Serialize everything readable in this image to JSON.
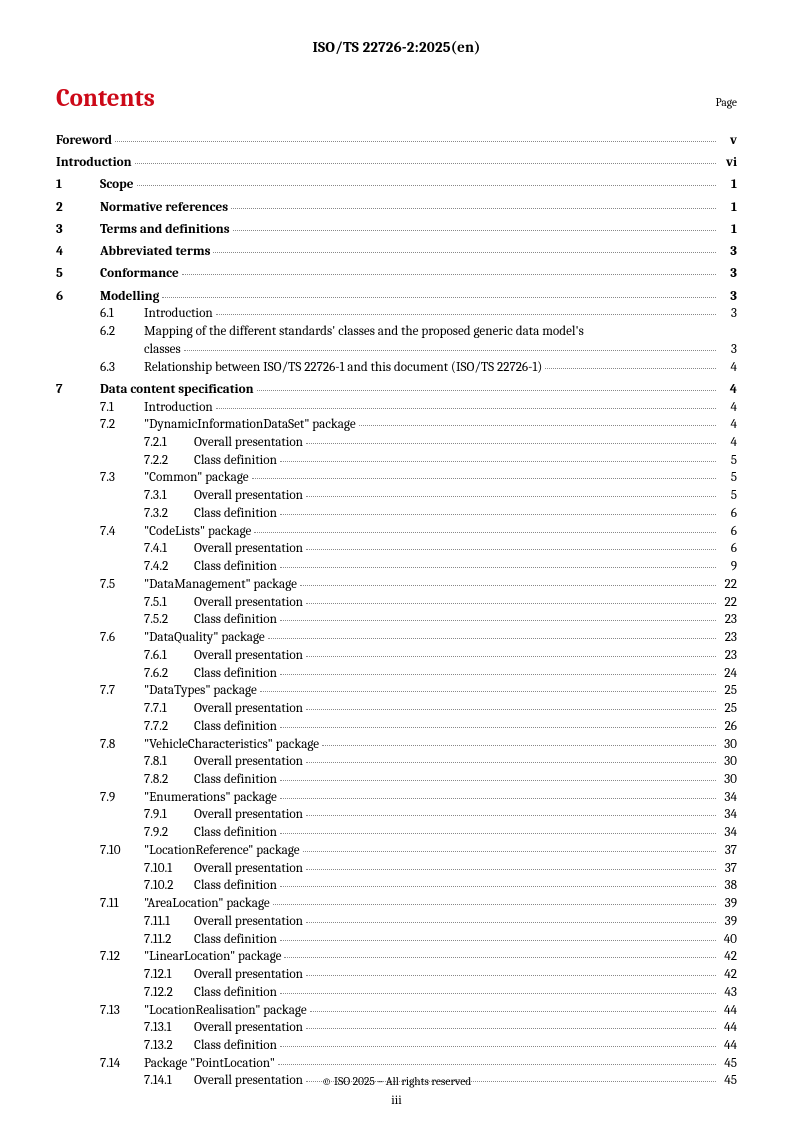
{
  "header": "ISO/TS 22726-2:2025(en)",
  "contents_title": "Contents",
  "page_label": "Page",
  "footer": "© ISO 2025 – All rights reserved",
  "page_number": "iii",
  "colors": {
    "accent": "#cc0918",
    "text": "#000000",
    "leader": "#888888",
    "background": "#ffffff"
  },
  "toc": [
    {
      "level": 0,
      "num": "",
      "label": "Foreword",
      "page": "v"
    },
    {
      "level": 0,
      "num": "",
      "label": "Introduction",
      "page": "vi"
    },
    {
      "level": 1,
      "num": "1",
      "label": "Scope",
      "page": "1"
    },
    {
      "level": 1,
      "num": "2",
      "label": "Normative references",
      "page": "1"
    },
    {
      "level": 1,
      "num": "3",
      "label": "Terms and definitions",
      "page": "1"
    },
    {
      "level": 1,
      "num": "4",
      "label": "Abbreviated terms",
      "page": "3"
    },
    {
      "level": 1,
      "num": "5",
      "label": "Conformance",
      "page": "3"
    },
    {
      "level": 1,
      "num": "6",
      "label": "Modelling",
      "page": "3"
    },
    {
      "level": 2,
      "num": "6.1",
      "label": "Introduction",
      "page": "3"
    },
    {
      "level": 2,
      "num": "6.2",
      "label_line1": "Mapping of the different standards' classes and the proposed generic data model's",
      "label_line2": "classes",
      "page": "3",
      "multiline": true
    },
    {
      "level": 2,
      "num": "6.3",
      "label": "Relationship between ISO/TS 22726-1 and this document (ISO/TS 22726-1)",
      "page": "4"
    },
    {
      "level": 1,
      "num": "7",
      "label": "Data content specification",
      "page": "4"
    },
    {
      "level": 2,
      "num": "7.1",
      "label": "Introduction",
      "page": "4"
    },
    {
      "level": 2,
      "num": "7.2",
      "label": "\"DynamicInformationDataSet\" package",
      "page": "4"
    },
    {
      "level": 3,
      "num": "7.2.1",
      "label": "Overall presentation",
      "page": "4"
    },
    {
      "level": 3,
      "num": "7.2.2",
      "label": "Class definition",
      "page": "5"
    },
    {
      "level": 2,
      "num": "7.3",
      "label": "\"Common\" package",
      "page": "5"
    },
    {
      "level": 3,
      "num": "7.3.1",
      "label": "Overall presentation",
      "page": "5"
    },
    {
      "level": 3,
      "num": "7.3.2",
      "label": "Class definition",
      "page": "6"
    },
    {
      "level": 2,
      "num": "7.4",
      "label": "\"CodeLists\" package",
      "page": "6"
    },
    {
      "level": 3,
      "num": "7.4.1",
      "label": "Overall presentation",
      "page": "6"
    },
    {
      "level": 3,
      "num": "7.4.2",
      "label": "Class definition",
      "page": "9"
    },
    {
      "level": 2,
      "num": "7.5",
      "label": "\"DataManagement\" package",
      "page": "22"
    },
    {
      "level": 3,
      "num": "7.5.1",
      "label": "Overall presentation",
      "page": "22"
    },
    {
      "level": 3,
      "num": "7.5.2",
      "label": "Class definition",
      "page": "23"
    },
    {
      "level": 2,
      "num": "7.6",
      "label": "\"DataQuality\" package",
      "page": "23"
    },
    {
      "level": 3,
      "num": "7.6.1",
      "label": "Overall presentation",
      "page": "23"
    },
    {
      "level": 3,
      "num": "7.6.2",
      "label": "Class definition",
      "page": "24"
    },
    {
      "level": 2,
      "num": "7.7",
      "label": "\"DataTypes\" package",
      "page": "25"
    },
    {
      "level": 3,
      "num": "7.7.1",
      "label": "Overall presentation",
      "page": "25"
    },
    {
      "level": 3,
      "num": "7.7.2",
      "label": "Class definition",
      "page": "26"
    },
    {
      "level": 2,
      "num": "7.8",
      "label": "\"VehicleCharacteristics\" package",
      "page": "30"
    },
    {
      "level": 3,
      "num": "7.8.1",
      "label": "Overall presentation",
      "page": "30"
    },
    {
      "level": 3,
      "num": "7.8.2",
      "label": "Class definition",
      "page": "30"
    },
    {
      "level": 2,
      "num": "7.9",
      "label": "\"Enumerations\" package",
      "page": "34"
    },
    {
      "level": 3,
      "num": "7.9.1",
      "label": "Overall presentation",
      "page": "34"
    },
    {
      "level": 3,
      "num": "7.9.2",
      "label": "Class definition",
      "page": "34"
    },
    {
      "level": 2,
      "num": "7.10",
      "label": "\"LocationReference\" package",
      "page": "37"
    },
    {
      "level": 3,
      "num": "7.10.1",
      "label": "Overall presentation",
      "page": "37"
    },
    {
      "level": 3,
      "num": "7.10.2",
      "label": "Class definition",
      "page": "38"
    },
    {
      "level": 2,
      "num": "7.11",
      "label": "\"AreaLocation\" package",
      "page": "39"
    },
    {
      "level": 3,
      "num": "7.11.1",
      "label": "Overall presentation",
      "page": "39"
    },
    {
      "level": 3,
      "num": "7.11.2",
      "label": "Class definition",
      "page": "40"
    },
    {
      "level": 2,
      "num": "7.12",
      "label": "\"LinearLocation\" package",
      "page": "42"
    },
    {
      "level": 3,
      "num": "7.12.1",
      "label": "Overall presentation",
      "page": "42"
    },
    {
      "level": 3,
      "num": "7.12.2",
      "label": "Class definition",
      "page": "43"
    },
    {
      "level": 2,
      "num": "7.13",
      "label": "\"LocationRealisation\" package",
      "page": "44"
    },
    {
      "level": 3,
      "num": "7.13.1",
      "label": "Overall presentation",
      "page": "44"
    },
    {
      "level": 3,
      "num": "7.13.2",
      "label": "Class definition",
      "page": "44"
    },
    {
      "level": 2,
      "num": "7.14",
      "label": "Package \"PointLocation\"",
      "page": "45"
    },
    {
      "level": 3,
      "num": "7.14.1",
      "label": "Overall presentation",
      "page": "45"
    }
  ]
}
